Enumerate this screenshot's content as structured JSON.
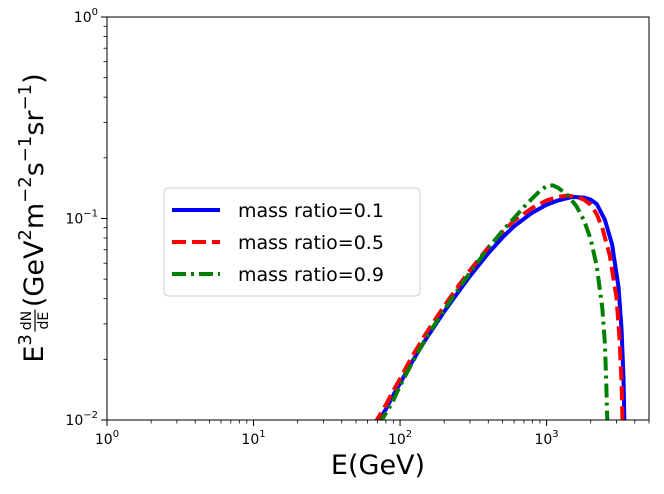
{
  "chart_data": {
    "type": "line",
    "title": "",
    "xlabel": "E(GeV)",
    "ylabel": {
      "prefix": "E",
      "sup": "3",
      "fraction_numerator": "dN",
      "fraction_denominator": "dE",
      "unit_open": "(GeV",
      "unit_gev_exp": "2",
      "unit_m": "m",
      "unit_m_exp": "−2",
      "unit_s": "s",
      "unit_s_exp": "−1",
      "unit_sr": "sr",
      "unit_sr_exp": "−1",
      "unit_close": ")"
    },
    "x_scale": "log",
    "y_scale": "log",
    "xlim": [
      1,
      5000
    ],
    "ylim": [
      0.01,
      1
    ],
    "x_ticks": [
      {
        "base": "10",
        "exp": "0"
      },
      {
        "base": "10",
        "exp": "1"
      },
      {
        "base": "10",
        "exp": "2"
      },
      {
        "base": "10",
        "exp": "3"
      }
    ],
    "y_ticks": [
      {
        "base": "10",
        "exp": "−2"
      },
      {
        "base": "10",
        "exp": "−1"
      },
      {
        "base": "10",
        "exp": "0"
      }
    ],
    "legend_position": "center-left",
    "series": [
      {
        "name": "mass ratio=0.1",
        "color": "#0000ff",
        "style": "solid",
        "points": [
          [
            68,
            0.0095
          ],
          [
            75,
            0.0105
          ],
          [
            80,
            0.0113
          ],
          [
            90,
            0.0133
          ],
          [
            100,
            0.0152
          ],
          [
            120,
            0.0193
          ],
          [
            150,
            0.0252
          ],
          [
            200,
            0.0345
          ],
          [
            250,
            0.0432
          ],
          [
            300,
            0.0518
          ],
          [
            400,
            0.0672
          ],
          [
            500,
            0.0805
          ],
          [
            600,
            0.0915
          ],
          [
            800,
            0.107
          ],
          [
            1000,
            0.117
          ],
          [
            1200,
            0.123
          ],
          [
            1500,
            0.128
          ],
          [
            1800,
            0.127
          ],
          [
            2000,
            0.124
          ],
          [
            2200,
            0.118
          ],
          [
            2500,
            0.0985
          ],
          [
            2800,
            0.0742
          ],
          [
            3100,
            0.0455
          ],
          [
            3250,
            0.028
          ],
          [
            3350,
            0.016
          ],
          [
            3400,
            0.0095
          ]
        ]
      },
      {
        "name": "mass ratio=0.5",
        "color": "#ff0000",
        "style": "dashed",
        "points": [
          [
            66,
            0.0095
          ],
          [
            70,
            0.0101
          ],
          [
            80,
            0.0119
          ],
          [
            90,
            0.014
          ],
          [
            100,
            0.016
          ],
          [
            120,
            0.0205
          ],
          [
            150,
            0.0268
          ],
          [
            200,
            0.0368
          ],
          [
            250,
            0.0462
          ],
          [
            300,
            0.0553
          ],
          [
            400,
            0.0718
          ],
          [
            500,
            0.0858
          ],
          [
            600,
            0.0975
          ],
          [
            800,
            0.113
          ],
          [
            1000,
            0.123
          ],
          [
            1200,
            0.128
          ],
          [
            1400,
            0.13
          ],
          [
            1600,
            0.128
          ],
          [
            1800,
            0.124
          ],
          [
            2000,
            0.117
          ],
          [
            2200,
            0.105
          ],
          [
            2400,
            0.09
          ],
          [
            2700,
            0.0655
          ],
          [
            3000,
            0.0405
          ],
          [
            3150,
            0.025
          ],
          [
            3250,
            0.015
          ],
          [
            3300,
            0.0095
          ]
        ]
      },
      {
        "name": "mass ratio=0.9",
        "color": "#008000",
        "style": "dashdot",
        "points": [
          [
            72,
            0.0095
          ],
          [
            80,
            0.0108
          ],
          [
            90,
            0.0125
          ],
          [
            100,
            0.0148
          ],
          [
            120,
            0.019
          ],
          [
            150,
            0.0255
          ],
          [
            200,
            0.0352
          ],
          [
            250,
            0.0447
          ],
          [
            300,
            0.0538
          ],
          [
            400,
            0.0712
          ],
          [
            500,
            0.0868
          ],
          [
            600,
            0.1005
          ],
          [
            700,
            0.114
          ],
          [
            800,
            0.126
          ],
          [
            900,
            0.137
          ],
          [
            1000,
            0.145
          ],
          [
            1100,
            0.146
          ],
          [
            1200,
            0.142
          ],
          [
            1400,
            0.13
          ],
          [
            1600,
            0.115
          ],
          [
            1800,
            0.098
          ],
          [
            2000,
            0.079
          ],
          [
            2200,
            0.058
          ],
          [
            2400,
            0.036
          ],
          [
            2500,
            0.024
          ],
          [
            2550,
            0.016
          ],
          [
            2600,
            0.0095
          ]
        ]
      }
    ]
  }
}
